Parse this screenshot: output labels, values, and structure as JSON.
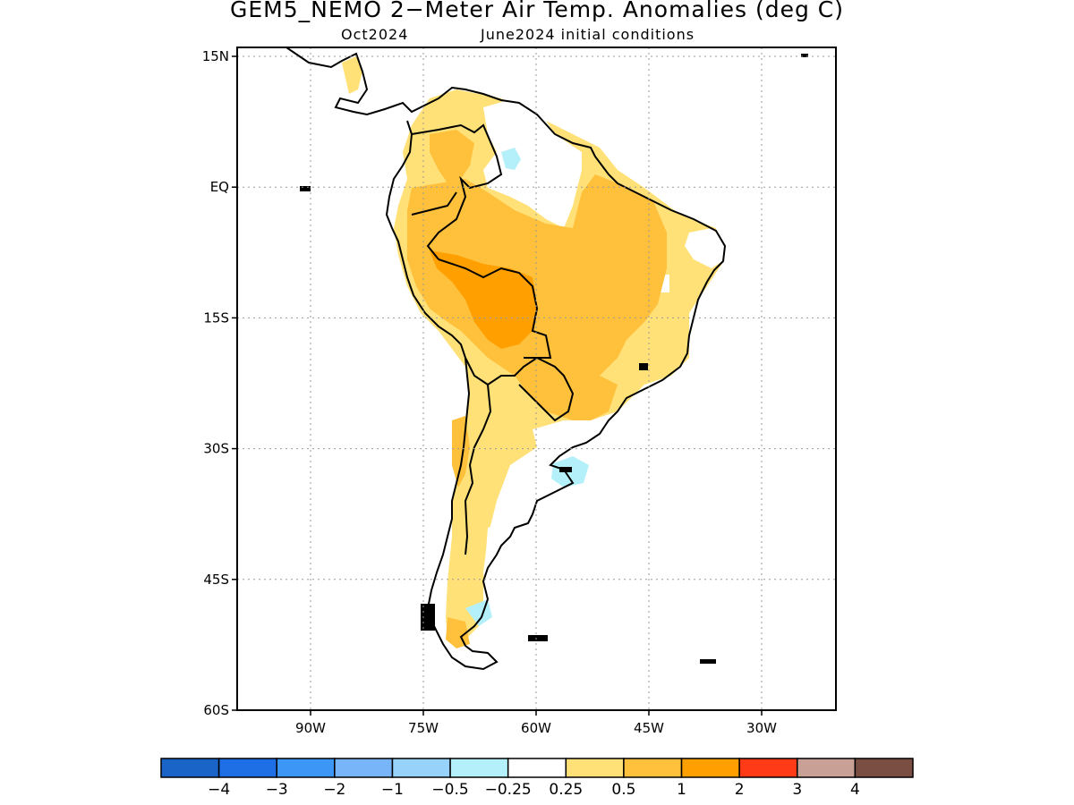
{
  "title": "GEM5_NEMO 2−Meter Air Temp. Anomalies (deg C)",
  "subtitle_month": "Oct2024",
  "subtitle_init": "June2024 initial conditions",
  "axes": {
    "lat_labels": [
      "15N",
      "EQ",
      "15S",
      "30S",
      "45S",
      "60S"
    ],
    "lat_values": [
      15,
      0,
      -15,
      -30,
      -45,
      -60
    ],
    "lon_labels": [
      "90W",
      "75W",
      "60W",
      "45W",
      "30W"
    ],
    "lon_values": [
      -90,
      -75,
      -60,
      -45,
      -30
    ],
    "lon_range": [
      -100,
      -20
    ],
    "lat_range": [
      -60,
      16
    ],
    "gridlines": true
  },
  "colorbar": {
    "colors": [
      "#1a64c8",
      "#1e6ee6",
      "#3c96f5",
      "#78b4f8",
      "#96d2fa",
      "#b4f0fa",
      "#ffffff",
      "#ffe178",
      "#ffc03c",
      "#ffa000",
      "#ff3a16",
      "#c8a096",
      "#7a4e42"
    ],
    "labels": [
      "−4",
      "−3",
      "−2",
      "−1",
      "−0.5",
      "−0.25",
      "0.25",
      "0.5",
      "1",
      "2",
      "3",
      "4"
    ]
  },
  "regions": [
    {
      "name": "light-warm-anomaly",
      "color": "#ffe178",
      "level": "0.25 to 0.5"
    },
    {
      "name": "moderate-warm-anomaly",
      "color": "#ffc03c",
      "level": "0.5 to 1"
    },
    {
      "name": "strong-warm-anomaly",
      "color": "#ffa000",
      "level": "1 to 2"
    },
    {
      "name": "slight-cool-anomaly",
      "color": "#b4f0fa",
      "level": "-0.5 to -0.25"
    }
  ]
}
